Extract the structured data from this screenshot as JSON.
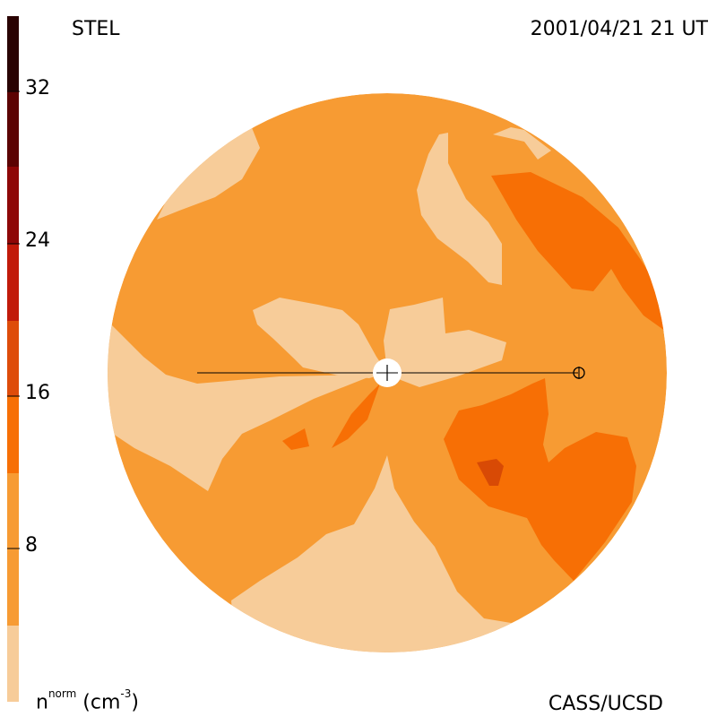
{
  "header": {
    "source": "STEL",
    "timestamp": "2001/04/21 21 UT"
  },
  "footer": {
    "credit": "CASS/UCSD"
  },
  "colorbar": {
    "unit_base": "n",
    "unit_sup": "norm",
    "unit_rest": " (cm",
    "unit_exp": "-3",
    "unit_close": ")",
    "ticks": [
      "8",
      "16",
      "24",
      "32"
    ],
    "bands": [
      "#f7cc99",
      "#f79b33",
      "#f76f05",
      "#de4c0a",
      "#c11a0a",
      "#8e0707",
      "#5c0303",
      "#2a0303"
    ]
  },
  "colors": {
    "light": "#f7cc99",
    "medium": "#f79b33",
    "dark": "#f76f05",
    "darker": "#d84a05",
    "sun": "#ffffff"
  }
}
